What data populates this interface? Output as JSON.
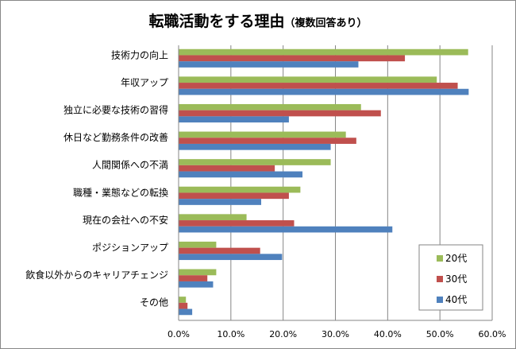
{
  "chart_data": {
    "type": "bar",
    "orientation": "horizontal",
    "title": "転職活動をする理由",
    "subtitle": "（複数回答あり）",
    "categories": [
      "技術力の向上",
      "年収アップ",
      "独立に必要な技術の習得",
      "休日など勤務条件の改善",
      "人間関係への不満",
      "職種・業態などの転換",
      "現在の会社への不安",
      "ポジションアップ",
      "飲食以外からのキャリアチェンジ",
      "その他"
    ],
    "series": [
      {
        "name": "20代",
        "color": "#9bbb59",
        "values": [
          55.4,
          49.4,
          34.9,
          32.0,
          29.1,
          23.3,
          13.0,
          7.2,
          7.2,
          1.4
        ]
      },
      {
        "name": "30代",
        "color": "#c0504d",
        "values": [
          43.3,
          53.4,
          38.7,
          34.0,
          18.4,
          21.1,
          22.1,
          15.6,
          5.5,
          1.7
        ]
      },
      {
        "name": "40代",
        "color": "#4f81bd",
        "values": [
          34.4,
          55.5,
          21.1,
          29.1,
          23.7,
          15.8,
          40.9,
          19.8,
          6.6,
          2.6
        ]
      }
    ],
    "xlim": [
      0,
      60
    ],
    "x_ticks": [
      "0.0%",
      "10.0%",
      "20.0%",
      "30.0%",
      "40.0%",
      "50.0%",
      "60.0%"
    ],
    "unit": "%",
    "grid": true,
    "legend_position": "bottom-right"
  }
}
